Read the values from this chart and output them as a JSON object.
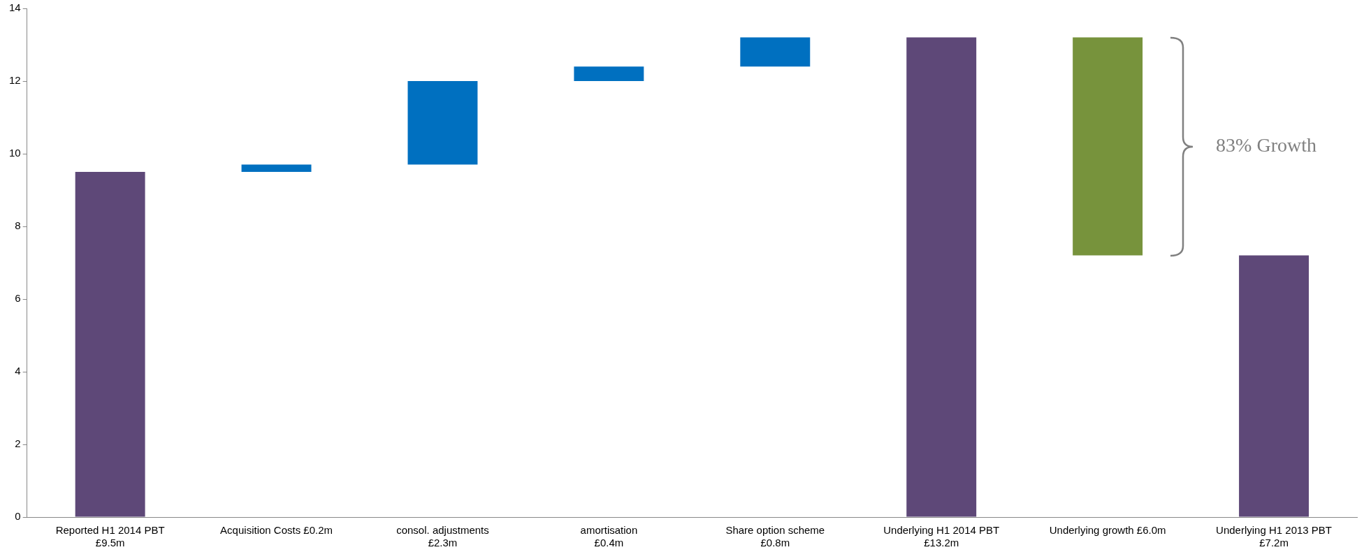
{
  "chart_data": {
    "type": "bar",
    "categories": [
      "Reported H1 2014 PBT\n£9.5m",
      "Acquisition Costs £0.2m",
      "consol. adjustments\n£2.3m",
      "amortisation\n£0.4m",
      "Share option scheme\n£0.8m",
      "Underlying H1 2014 PBT\n£13.2m",
      "Underlying growth £6.0m",
      "Underlying H1 2013 PBT\n£7.2m"
    ],
    "values": [
      9.5,
      0.2,
      2.3,
      0.4,
      0.8,
      13.2,
      6.0,
      7.2
    ],
    "base": [
      0,
      9.5,
      9.7,
      12.0,
      12.4,
      0,
      7.2,
      0
    ],
    "colors": [
      "#5e4878",
      "#0070c0",
      "#0070c0",
      "#0070c0",
      "#0070c0",
      "#5e4878",
      "#77933c",
      "#5e4878"
    ],
    "ylim": [
      0,
      14
    ],
    "yticks": [
      0,
      2,
      4,
      6,
      8,
      10,
      12,
      14
    ],
    "grid": false,
    "legend": false,
    "annotations": [
      "83% Growth"
    ]
  }
}
